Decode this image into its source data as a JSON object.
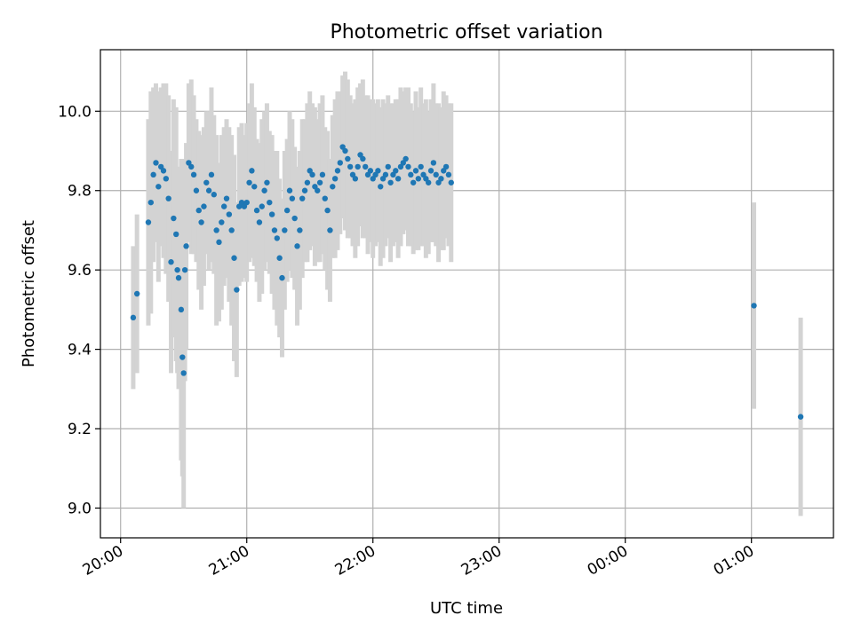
{
  "chart_data": {
    "type": "scatter",
    "title": "Photometric offset variation",
    "xlabel": "UTC time",
    "ylabel": "Photometric offset",
    "x_ticks": [
      "20:00",
      "21:00",
      "22:00",
      "23:00",
      "00:00",
      "01:00"
    ],
    "x_tick_hours": [
      20,
      21,
      22,
      23,
      24,
      25
    ],
    "xlim_hours": [
      19.84,
      25.65
    ],
    "y_ticks": [
      "9.0",
      "9.2",
      "9.4",
      "9.6",
      "9.8",
      "10.0"
    ],
    "y_tick_values": [
      9.0,
      9.2,
      9.4,
      9.6,
      9.8,
      10.0
    ],
    "ylim": [
      8.925,
      10.155
    ],
    "grid": true,
    "legend": "none",
    "colors": {
      "points": "#1f77b4",
      "errorbars": "#d3d3d3"
    },
    "point_hours": [
      20.1,
      20.13,
      20.22,
      20.24,
      20.26,
      20.28,
      20.3,
      20.32,
      20.34,
      20.36,
      20.38,
      20.4,
      20.42,
      20.44,
      20.45,
      20.46,
      20.48,
      20.49,
      20.5,
      20.51,
      20.52,
      20.54,
      20.56,
      20.58,
      20.6,
      20.62,
      20.64,
      20.66,
      20.68,
      20.7,
      20.72,
      20.74,
      20.76,
      20.78,
      20.8,
      20.82,
      20.84,
      20.86,
      20.88,
      20.9,
      20.92,
      20.94,
      20.96,
      20.98,
      21.0,
      21.02,
      21.04,
      21.06,
      21.08,
      21.1,
      21.12,
      21.14,
      21.16,
      21.18,
      21.2,
      21.22,
      21.24,
      21.26,
      21.28,
      21.3,
      21.32,
      21.34,
      21.36,
      21.38,
      21.4,
      21.42,
      21.44,
      21.46,
      21.48,
      21.5,
      21.52,
      21.54,
      21.56,
      21.58,
      21.6,
      21.62,
      21.64,
      21.66,
      21.68,
      21.7,
      21.72,
      21.74,
      21.76,
      21.78,
      21.8,
      21.82,
      21.84,
      21.86,
      21.88,
      21.9,
      21.92,
      21.94,
      21.96,
      21.98,
      22.0,
      22.02,
      22.04,
      22.06,
      22.08,
      22.1,
      22.12,
      22.14,
      22.16,
      22.18,
      22.2,
      22.22,
      22.24,
      22.26,
      22.28,
      22.3,
      22.32,
      22.34,
      22.36,
      22.38,
      22.4,
      22.42,
      22.44,
      22.46,
      22.48,
      22.5,
      22.52,
      22.54,
      22.56,
      22.58,
      22.6,
      22.62,
      25.02,
      25.39
    ],
    "point_values": [
      9.48,
      9.54,
      9.72,
      9.77,
      9.84,
      9.87,
      9.81,
      9.86,
      9.85,
      9.83,
      9.78,
      9.62,
      9.73,
      9.69,
      9.6,
      9.58,
      9.5,
      9.38,
      9.34,
      9.6,
      9.66,
      9.87,
      9.86,
      9.84,
      9.8,
      9.75,
      9.72,
      9.76,
      9.82,
      9.8,
      9.84,
      9.79,
      9.7,
      9.67,
      9.72,
      9.76,
      9.78,
      9.74,
      9.7,
      9.63,
      9.55,
      9.76,
      9.77,
      9.76,
      9.77,
      9.82,
      9.85,
      9.81,
      9.75,
      9.72,
      9.76,
      9.8,
      9.82,
      9.77,
      9.74,
      9.7,
      9.68,
      9.63,
      9.58,
      9.7,
      9.75,
      9.8,
      9.78,
      9.73,
      9.66,
      9.7,
      9.78,
      9.8,
      9.82,
      9.85,
      9.84,
      9.81,
      9.8,
      9.82,
      9.84,
      9.78,
      9.75,
      9.7,
      9.81,
      9.83,
      9.85,
      9.87,
      9.91,
      9.9,
      9.88,
      9.86,
      9.84,
      9.83,
      9.86,
      9.89,
      9.88,
      9.86,
      9.84,
      9.85,
      9.83,
      9.84,
      9.85,
      9.81,
      9.83,
      9.84,
      9.86,
      9.82,
      9.84,
      9.85,
      9.83,
      9.86,
      9.87,
      9.88,
      9.86,
      9.84,
      9.82,
      9.85,
      9.83,
      9.86,
      9.84,
      9.83,
      9.82,
      9.85,
      9.87,
      9.84,
      9.82,
      9.83,
      9.85,
      9.86,
      9.84,
      9.82,
      9.51,
      9.23
    ],
    "point_errors": [
      0.18,
      0.2,
      0.26,
      0.28,
      0.22,
      0.2,
      0.24,
      0.2,
      0.22,
      0.24,
      0.26,
      0.28,
      0.3,
      0.32,
      0.26,
      0.28,
      0.38,
      0.3,
      0.34,
      0.28,
      0.26,
      0.2,
      0.22,
      0.2,
      0.18,
      0.2,
      0.22,
      0.2,
      0.18,
      0.2,
      0.22,
      0.2,
      0.24,
      0.2,
      0.22,
      0.2,
      0.2,
      0.22,
      0.24,
      0.26,
      0.22,
      0.2,
      0.2,
      0.18,
      0.2,
      0.2,
      0.22,
      0.2,
      0.18,
      0.2,
      0.22,
      0.2,
      0.2,
      0.18,
      0.2,
      0.2,
      0.22,
      0.2,
      0.2,
      0.2,
      0.18,
      0.2,
      0.2,
      0.18,
      0.2,
      0.2,
      0.2,
      0.18,
      0.2,
      0.2,
      0.18,
      0.2,
      0.18,
      0.2,
      0.2,
      0.18,
      0.2,
      0.18,
      0.18,
      0.2,
      0.2,
      0.18,
      0.18,
      0.2,
      0.2,
      0.18,
      0.18,
      0.2,
      0.2,
      0.18,
      0.2,
      0.18,
      0.2,
      0.18,
      0.2,
      0.18,
      0.18,
      0.2,
      0.2,
      0.18,
      0.18,
      0.2,
      0.18,
      0.18,
      0.2,
      0.2,
      0.18,
      0.18,
      0.2,
      0.18,
      0.18,
      0.2,
      0.18,
      0.2,
      0.18,
      0.2,
      0.18,
      0.18,
      0.2,
      0.18,
      0.2,
      0.18,
      0.2,
      0.18,
      0.18,
      0.2,
      0.26,
      0.25
    ]
  }
}
